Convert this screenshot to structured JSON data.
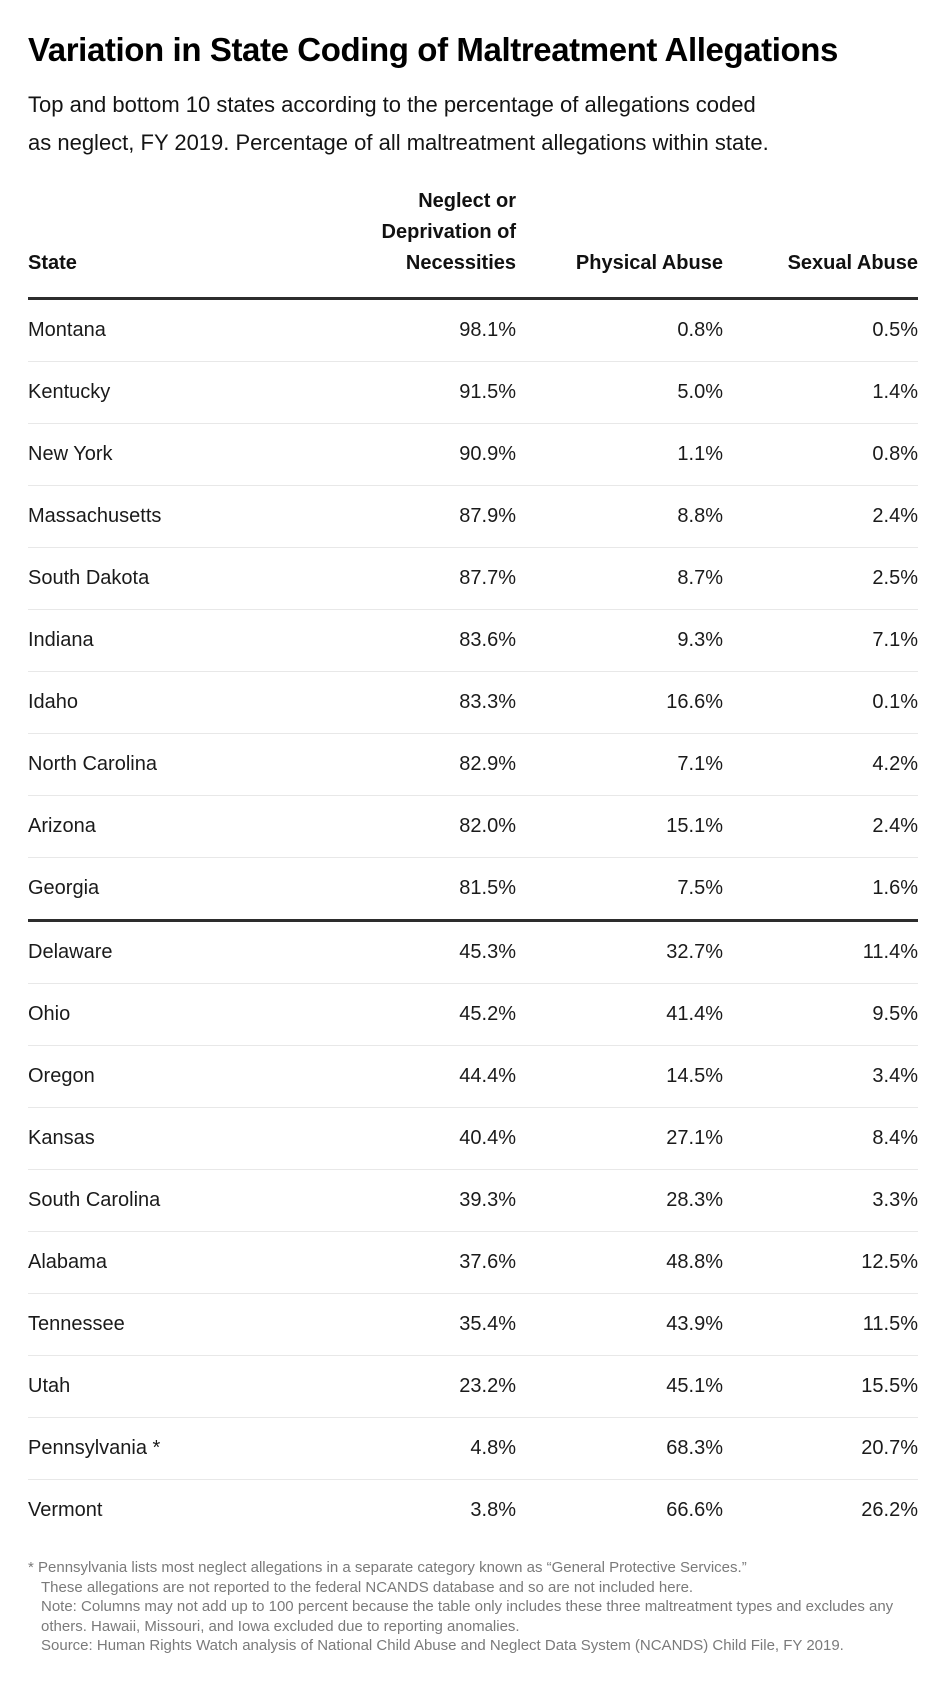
{
  "header": {
    "subtitle_lines": [
      "Top and bottom 10 states according to the percentage of allegations coded",
      "as neglect, FY 2019. Percentage of all maltreatment allegations within state."
    ]
  },
  "chart_data": {
    "type": "table",
    "title": "Variation in State Coding of Maltreatment Allegations",
    "subtitle": "Top and bottom 10 states according to the percentage of allegations coded as neglect, FY 2019. Percentage of all maltreatment allegations within state.",
    "unit": "%",
    "columns": [
      "State",
      "Neglect or Deprivation of Necessities",
      "Physical Abuse",
      "Sexual Abuse"
    ],
    "groups": [
      {
        "name": "top_10_states_by_neglect",
        "rows": [
          {
            "state": "Montana",
            "values": [
              98.1,
              0.8,
              0.5
            ]
          },
          {
            "state": "Kentucky",
            "values": [
              91.5,
              5.0,
              1.4
            ]
          },
          {
            "state": "New York",
            "values": [
              90.9,
              1.1,
              0.8
            ]
          },
          {
            "state": "Massachusetts",
            "values": [
              87.9,
              8.8,
              2.4
            ]
          },
          {
            "state": "South Dakota",
            "values": [
              87.7,
              8.7,
              2.5
            ]
          },
          {
            "state": "Indiana",
            "values": [
              83.6,
              9.3,
              7.1
            ]
          },
          {
            "state": "Idaho",
            "values": [
              83.3,
              16.6,
              0.1
            ]
          },
          {
            "state": "North Carolina",
            "values": [
              82.9,
              7.1,
              4.2
            ]
          },
          {
            "state": "Arizona",
            "values": [
              82.0,
              15.1,
              2.4
            ]
          },
          {
            "state": "Georgia",
            "values": [
              81.5,
              7.5,
              1.6
            ]
          }
        ]
      },
      {
        "name": "bottom_10_states_by_neglect",
        "rows": [
          {
            "state": "Delaware",
            "values": [
              45.3,
              32.7,
              11.4
            ]
          },
          {
            "state": "Ohio",
            "values": [
              45.2,
              41.4,
              9.5
            ]
          },
          {
            "state": "Oregon",
            "values": [
              44.4,
              14.5,
              3.4
            ]
          },
          {
            "state": "Kansas",
            "values": [
              40.4,
              27.1,
              8.4
            ]
          },
          {
            "state": "South Carolina",
            "values": [
              39.3,
              28.3,
              3.3
            ]
          },
          {
            "state": "Alabama",
            "values": [
              37.6,
              48.8,
              12.5
            ]
          },
          {
            "state": "Tennessee",
            "values": [
              35.4,
              43.9,
              11.5
            ]
          },
          {
            "state": "Utah",
            "values": [
              23.2,
              45.1,
              15.5
            ]
          },
          {
            "state": "Pennsylvania",
            "marker": "*",
            "values": [
              4.8,
              68.3,
              20.7
            ]
          },
          {
            "state": "Vermont",
            "values": [
              3.8,
              66.6,
              26.2
            ]
          }
        ]
      }
    ],
    "layout": {
      "grid": "horizontal-row-separators",
      "group_divider": "thick",
      "value_alignment": "right"
    }
  },
  "footnotes": [
    "* Pennsylvania lists most neglect allegations in a separate category known as “General Protective Services.”",
    "These allegations are not reported to the federal NCANDS database and so are not included here.",
    "Note: Columns may not add up to 100 percent because the table only includes these three maltreatment types and excludes any others. Hawaii, Missouri, and Iowa excluded due to reporting anomalies.",
    "Source: Human Rights Watch analysis of National Child Abuse and Neglect Data System (NCANDS) Child File, FY 2019."
  ],
  "colors": {
    "text": "#1a1a1a",
    "title": "#000000",
    "divider_strong": "#2d2d2d",
    "divider_light": "#e8e8e8",
    "footnote_text": "#7a7a7a",
    "background": "#ffffff"
  }
}
